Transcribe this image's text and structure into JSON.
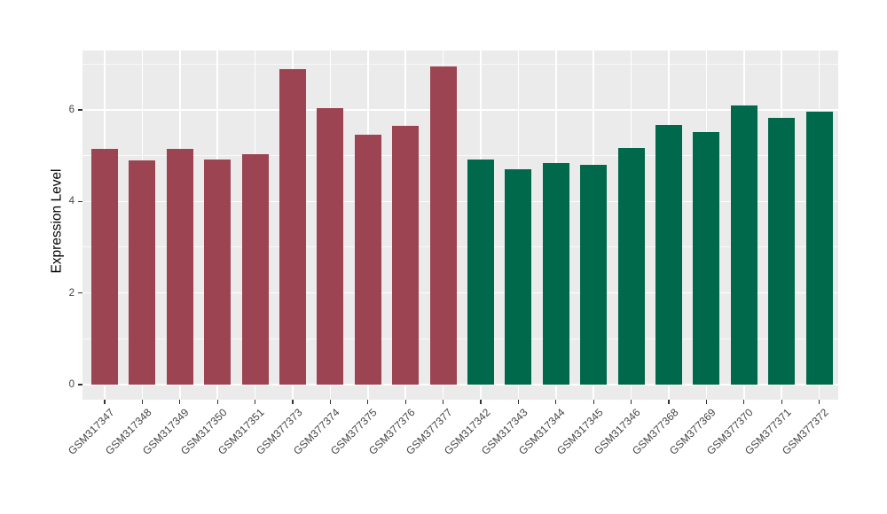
{
  "figure": {
    "background_color": "#FFFFFF",
    "title": ""
  },
  "chart_data": {
    "type": "bar",
    "title": "",
    "xlabel": "",
    "ylabel": "Expression Level",
    "ylim": [
      0,
      7.3
    ],
    "yticks_major": [
      0,
      2,
      4,
      6
    ],
    "yticks_minor": [
      1,
      3,
      5,
      7
    ],
    "grid": "on",
    "legend_position": "none",
    "panel_background": "#EBEBEB",
    "gridline_color": "#FFFFFF",
    "axis_text_color": "#444444",
    "axis_title_color": "#000000",
    "tick_mark_color": "#333333",
    "categories": [
      "GSM317347",
      "GSM317348",
      "GSM317349",
      "GSM317350",
      "GSM317351",
      "GSM377373",
      "GSM377374",
      "GSM377375",
      "GSM377376",
      "GSM377377",
      "GSM317342",
      "GSM317343",
      "GSM317344",
      "GSM317345",
      "GSM317346",
      "GSM377368",
      "GSM377369",
      "GSM377370",
      "GSM377371",
      "GSM377372"
    ],
    "values": [
      5.15,
      4.9,
      5.15,
      4.92,
      5.04,
      6.89,
      6.03,
      5.46,
      5.66,
      6.95,
      4.92,
      4.7,
      4.84,
      4.8,
      5.17,
      5.67,
      5.51,
      6.1,
      5.83,
      5.96
    ],
    "bar_groups": [
      "group1",
      "group1",
      "group1",
      "group1",
      "group1",
      "group1",
      "group1",
      "group1",
      "group1",
      "group1",
      "group2",
      "group2",
      "group2",
      "group2",
      "group2",
      "group2",
      "group2",
      "group2",
      "group2",
      "group2"
    ],
    "group_colors": {
      "group1": "#9C4451",
      "group2": "#00694B"
    }
  }
}
